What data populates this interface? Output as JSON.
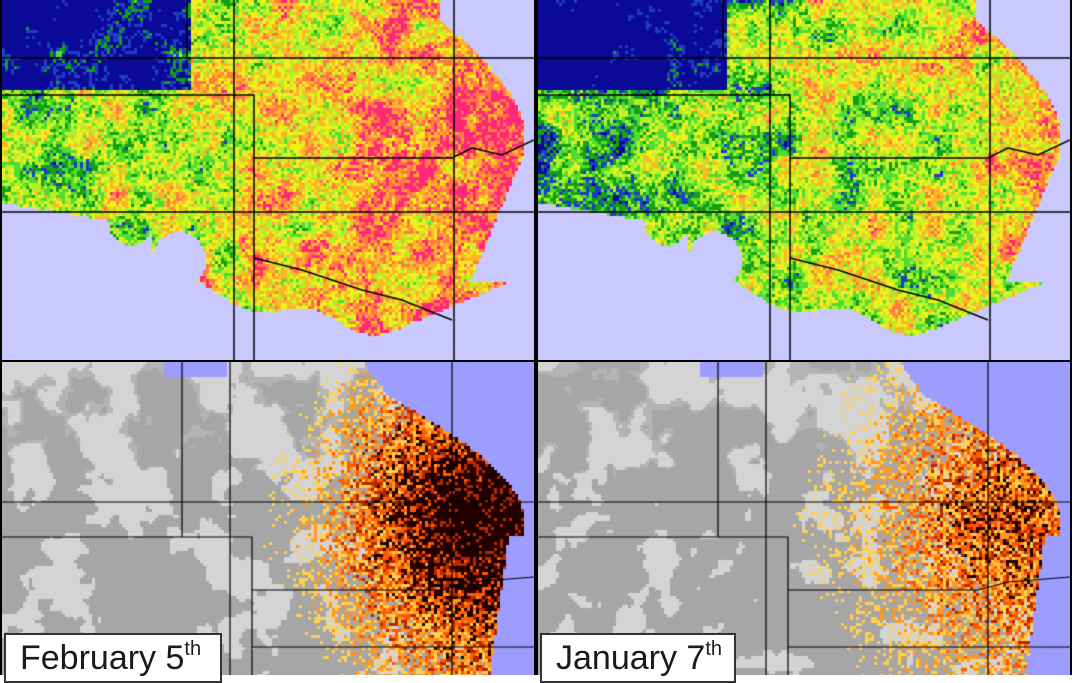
{
  "panels": {
    "top_left": {
      "name": "vegetation-index-map-february"
    },
    "top_right": {
      "name": "vegetation-index-map-january"
    },
    "bottom_left": {
      "name": "anomaly-map-february"
    },
    "bottom_right": {
      "name": "anomaly-map-january"
    }
  },
  "labels": {
    "left": {
      "day": "February 5",
      "suffix": "th"
    },
    "right": {
      "day": "January 7",
      "suffix": "th"
    }
  },
  "colors": {
    "ocean_top": "#c9c9ff",
    "ocean_bottom": "#9d9dff",
    "top_palette": [
      "#0a0a96",
      "#1e3cc8",
      "#14a014",
      "#50dc32",
      "#b4f028",
      "#f0f01e",
      "#ffb428",
      "#ff7846",
      "#ff2878"
    ],
    "bottom_palette": [
      "#d4d4d4",
      "#b4b4b4",
      "#a6a6a6",
      "#ffd050",
      "#ff9a1e",
      "#ff5a00",
      "#b42800",
      "#200000"
    ],
    "boundary_lines": "#000000"
  }
}
